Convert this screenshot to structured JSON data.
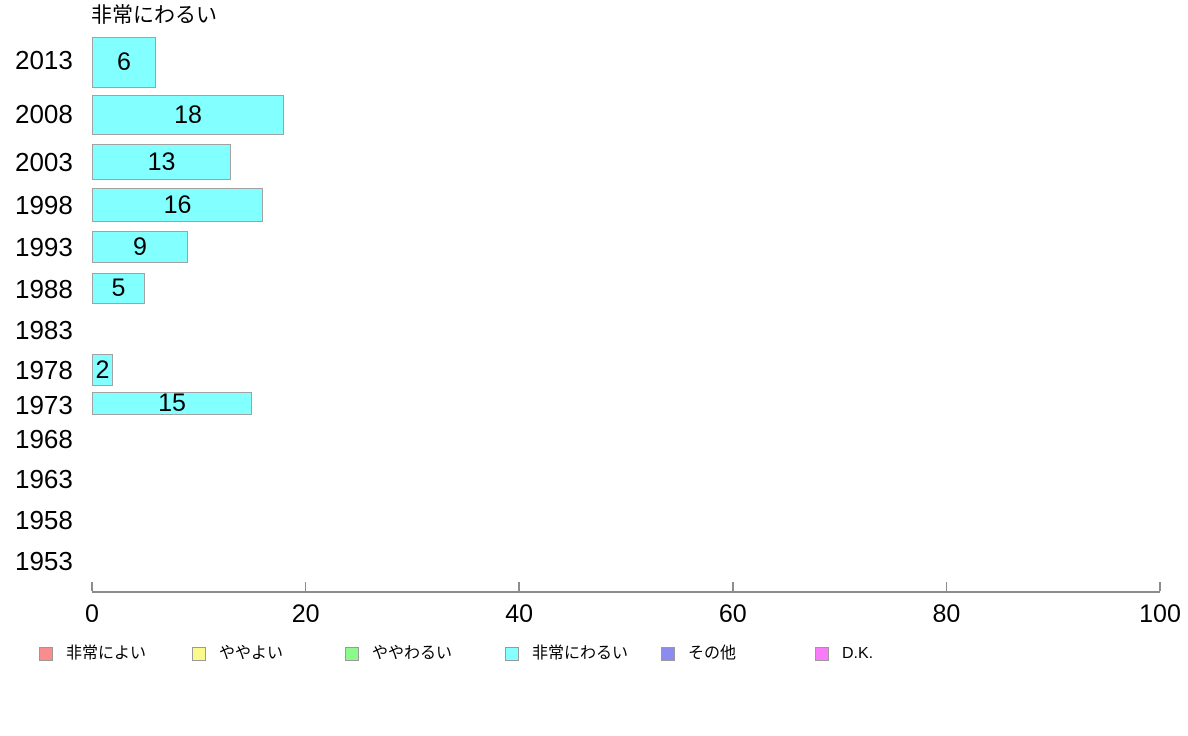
{
  "chart_data": {
    "type": "bar",
    "orientation": "horizontal",
    "title": "非常にわるい",
    "categories": [
      "2013",
      "2008",
      "2003",
      "1998",
      "1993",
      "1988",
      "1983",
      "1978",
      "1973",
      "1968",
      "1963",
      "1958",
      "1953"
    ],
    "series": [
      {
        "name": "非常にわるい",
        "values": [
          6,
          18,
          13,
          16,
          9,
          5,
          null,
          2,
          15,
          null,
          null,
          null,
          null
        ]
      }
    ],
    "xlabel": "",
    "ylabel": "",
    "xlim": [
      0,
      100
    ],
    "x_ticks": [
      "0",
      "20",
      "40",
      "60",
      "80",
      "100"
    ],
    "grid": false,
    "bar_fill_color": "#82ffff",
    "bar_border_color": "#a2a2a2",
    "axis_color": "#8c8c8c",
    "text_color": "#000000",
    "legend_position": "bottom",
    "legend": [
      {
        "label": "非常によい",
        "color": "#f98c8c"
      },
      {
        "label": "ややよい",
        "color": "#fafa8c"
      },
      {
        "label": "ややわるい",
        "color": "#8cf98c"
      },
      {
        "label": "非常にわるい",
        "color": "#85ffff"
      },
      {
        "label": "その他",
        "color": "#8c8cf0"
      },
      {
        "label": "D.K.",
        "color": "#f97bf9"
      }
    ]
  }
}
